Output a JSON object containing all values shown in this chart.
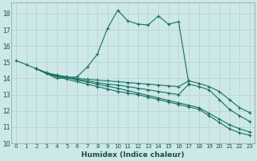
{
  "xlabel": "Humidex (Indice chaleur)",
  "background_color": "#cce8e8",
  "grid_color": "#b8d4d4",
  "line_color": "#1a7060",
  "xlim": [
    -0.5,
    23.5
  ],
  "ylim": [
    10,
    18.7
  ],
  "yticks": [
    10,
    11,
    12,
    13,
    14,
    15,
    16,
    17,
    18
  ],
  "xticks": [
    0,
    1,
    2,
    3,
    4,
    5,
    6,
    7,
    8,
    9,
    10,
    11,
    12,
    13,
    14,
    15,
    16,
    17,
    18,
    19,
    20,
    21,
    22,
    23
  ],
  "lines": [
    {
      "x": [
        0,
        1,
        2,
        3,
        4,
        5,
        6,
        7,
        8,
        9,
        10,
        11,
        12,
        13,
        14,
        15,
        16,
        17
      ],
      "y": [
        15.1,
        14.85,
        14.6,
        14.3,
        14.0,
        14.05,
        14.1,
        14.7,
        15.5,
        17.1,
        18.2,
        17.55,
        17.35,
        17.3,
        17.85,
        17.35,
        17.5,
        13.7
      ]
    },
    {
      "x": [
        2,
        3,
        4,
        5,
        6,
        7,
        8,
        9,
        10,
        11,
        12,
        13,
        14,
        15,
        16,
        17,
        18,
        19,
        20,
        21,
        22,
        23
      ],
      "y": [
        14.6,
        14.35,
        14.2,
        14.1,
        14.0,
        13.95,
        13.9,
        13.85,
        13.8,
        13.75,
        13.7,
        13.65,
        13.6,
        13.55,
        13.5,
        13.85,
        13.7,
        13.5,
        13.2,
        12.7,
        12.2,
        11.9
      ]
    },
    {
      "x": [
        2,
        3,
        4,
        5,
        6,
        7,
        8,
        9,
        10,
        11,
        12,
        13,
        14,
        15,
        16,
        17,
        18,
        19,
        20,
        21,
        22,
        23
      ],
      "y": [
        14.6,
        14.3,
        14.1,
        13.95,
        13.8,
        13.65,
        13.5,
        13.35,
        13.2,
        13.1,
        13.0,
        12.85,
        12.7,
        12.55,
        12.4,
        12.25,
        12.1,
        11.7,
        11.3,
        10.9,
        10.65,
        10.5
      ]
    },
    {
      "x": [
        2,
        3,
        4,
        5,
        6,
        7,
        8,
        9,
        10,
        11,
        12,
        13,
        14,
        15,
        16,
        17,
        18,
        19,
        20,
        21,
        22,
        23
      ],
      "y": [
        14.6,
        14.35,
        14.2,
        14.1,
        13.95,
        13.85,
        13.75,
        13.65,
        13.6,
        13.5,
        13.4,
        13.3,
        13.2,
        13.1,
        13.0,
        13.65,
        13.5,
        13.3,
        12.7,
        12.1,
        11.7,
        11.35
      ]
    },
    {
      "x": [
        2,
        3,
        4,
        5,
        6,
        7,
        8,
        9,
        10,
        11,
        12,
        13,
        14,
        15,
        16,
        17,
        18,
        19,
        20,
        21,
        22,
        23
      ],
      "y": [
        14.6,
        14.3,
        14.15,
        14.05,
        13.9,
        13.78,
        13.65,
        13.52,
        13.4,
        13.25,
        13.1,
        12.95,
        12.8,
        12.65,
        12.5,
        12.35,
        12.2,
        11.85,
        11.5,
        11.15,
        10.9,
        10.7
      ]
    }
  ]
}
